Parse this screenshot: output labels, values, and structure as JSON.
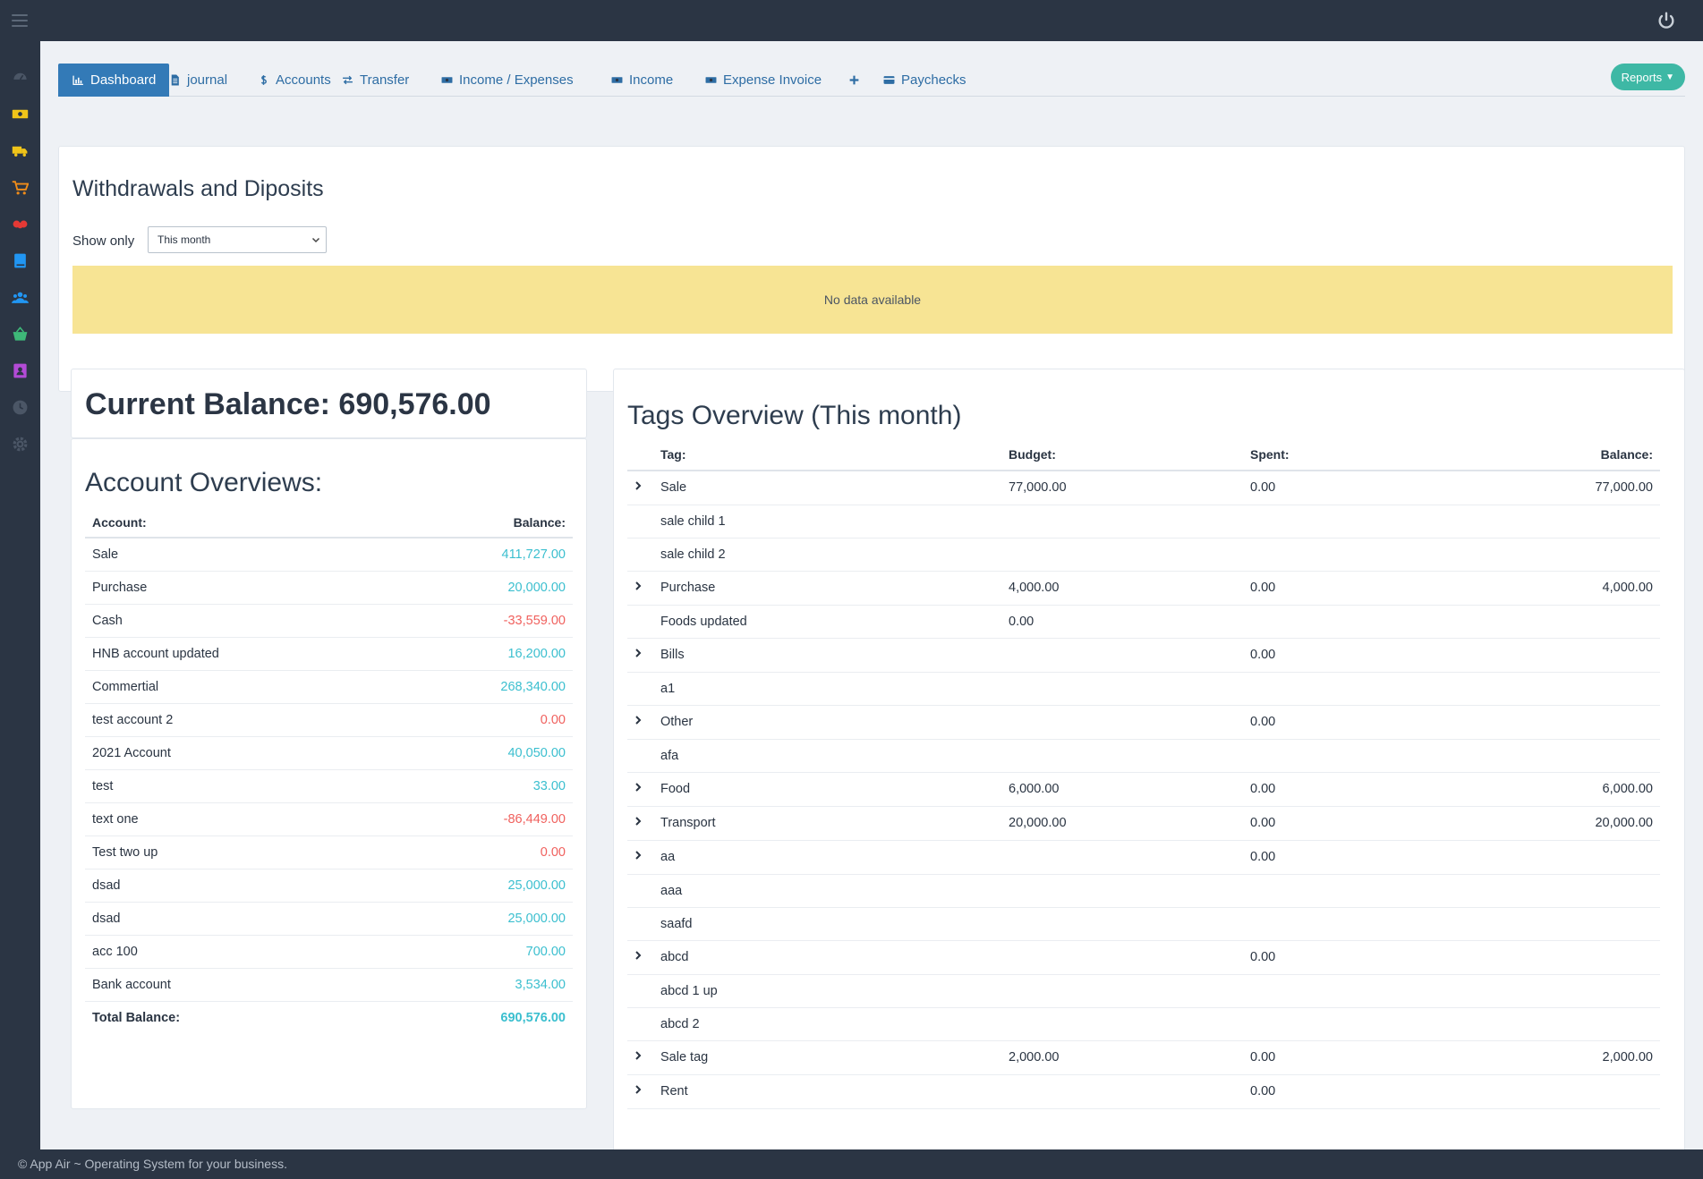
{
  "footer": {
    "text": "© App Air ~ Operating System for your business."
  },
  "sidebar": {
    "items": [
      {
        "name": "dashboard-icon",
        "color": "#4b5666"
      },
      {
        "name": "money-icon",
        "color": "#f0c419"
      },
      {
        "name": "truck-icon",
        "color": "#f0c419"
      },
      {
        "name": "cart-icon",
        "color": "#f08c19"
      },
      {
        "name": "handshake-icon",
        "color": "#e53935"
      },
      {
        "name": "book-icon",
        "color": "#2196f3"
      },
      {
        "name": "users-icon",
        "color": "#2196f3"
      },
      {
        "name": "basket-icon",
        "color": "#3eb878"
      },
      {
        "name": "contact-icon",
        "color": "#b34bd6"
      },
      {
        "name": "clock-icon",
        "color": "#4b5666"
      },
      {
        "name": "settings-icon",
        "color": "#4b5666"
      }
    ]
  },
  "tabs": [
    {
      "label": "Dashboard",
      "icon": "chart-icon",
      "active": true
    },
    {
      "label": "journal",
      "icon": "file-icon"
    },
    {
      "label": "Accounts",
      "icon": "dollar-icon"
    },
    {
      "label": "Transfer",
      "icon": "exchange-icon"
    },
    {
      "label": "Income / Expenses",
      "icon": "money-icon"
    },
    {
      "label": "Income",
      "icon": "money-icon"
    },
    {
      "label": "Expense Invoice",
      "icon": "money-icon"
    },
    {
      "label": "",
      "icon": "plus-icon"
    },
    {
      "label": "Paychecks",
      "icon": "card-icon"
    }
  ],
  "reports": {
    "label": "Reports"
  },
  "withdrawals": {
    "title": "Withdrawals and Diposits",
    "show_only_label": "Show only",
    "period_value": "This month",
    "empty_message": "No data available"
  },
  "balance": {
    "label": "Current Balance: 690,576.00"
  },
  "accounts": {
    "title": "Account Overviews:",
    "col_account": "Account:",
    "col_balance": "Balance:",
    "rows": [
      {
        "name": "Sale",
        "balance": "411,727.00",
        "negative": false
      },
      {
        "name": "Purchase",
        "balance": "20,000.00",
        "negative": false
      },
      {
        "name": "Cash",
        "balance": "-33,559.00",
        "negative": true
      },
      {
        "name": "HNB account updated",
        "balance": "16,200.00",
        "negative": false
      },
      {
        "name": "Commertial",
        "balance": "268,340.00",
        "negative": false
      },
      {
        "name": "test account 2",
        "balance": "0.00",
        "negative": true
      },
      {
        "name": "2021 Account",
        "balance": "40,050.00",
        "negative": false
      },
      {
        "name": "test",
        "balance": "33.00",
        "negative": false
      },
      {
        "name": "text one",
        "balance": "-86,449.00",
        "negative": true
      },
      {
        "name": "Test two up",
        "balance": "0.00",
        "negative": true
      },
      {
        "name": "dsad",
        "balance": "25,000.00",
        "negative": false
      },
      {
        "name": "dsad",
        "balance": "25,000.00",
        "negative": false
      },
      {
        "name": "acc 100",
        "balance": "700.00",
        "negative": false
      },
      {
        "name": "Bank account",
        "balance": "3,534.00",
        "negative": false
      }
    ],
    "total_label": "Total Balance:",
    "total_value": "690,576.00"
  },
  "tags": {
    "title": "Tags Overview (This month)",
    "col_tag": "Tag:",
    "col_budget": "Budget:",
    "col_spent": "Spent:",
    "col_balance": "Balance:",
    "rows": [
      {
        "parent": true,
        "tag": "Sale",
        "budget": "77,000.00",
        "spent": "0.00",
        "balance": "77,000.00"
      },
      {
        "parent": false,
        "tag": "sale child 1",
        "budget": "",
        "spent": "",
        "balance": ""
      },
      {
        "parent": false,
        "tag": "sale child 2",
        "budget": "",
        "spent": "",
        "balance": ""
      },
      {
        "parent": true,
        "tag": "Purchase",
        "budget": "4,000.00",
        "spent": "0.00",
        "balance": "4,000.00"
      },
      {
        "parent": false,
        "tag": "Foods updated",
        "budget": "0.00",
        "spent": "",
        "balance": ""
      },
      {
        "parent": true,
        "tag": "Bills",
        "budget": "",
        "spent": "0.00",
        "balance": ""
      },
      {
        "parent": false,
        "tag": "a1",
        "budget": "",
        "spent": "",
        "balance": ""
      },
      {
        "parent": true,
        "tag": "Other",
        "budget": "",
        "spent": "0.00",
        "balance": ""
      },
      {
        "parent": false,
        "tag": "afa",
        "budget": "",
        "spent": "",
        "balance": ""
      },
      {
        "parent": true,
        "tag": "Food",
        "budget": "6,000.00",
        "spent": "0.00",
        "balance": "6,000.00"
      },
      {
        "parent": true,
        "tag": "Transport",
        "budget": "20,000.00",
        "spent": "0.00",
        "balance": "20,000.00"
      },
      {
        "parent": true,
        "tag": "aa",
        "budget": "",
        "spent": "0.00",
        "balance": ""
      },
      {
        "parent": false,
        "tag": "aaa",
        "budget": "",
        "spent": "",
        "balance": ""
      },
      {
        "parent": false,
        "tag": "saafd",
        "budget": "",
        "spent": "",
        "balance": ""
      },
      {
        "parent": true,
        "tag": "abcd",
        "budget": "",
        "spent": "0.00",
        "balance": ""
      },
      {
        "parent": false,
        "tag": "abcd 1 up",
        "budget": "",
        "spent": "",
        "balance": ""
      },
      {
        "parent": false,
        "tag": "abcd 2",
        "budget": "",
        "spent": "",
        "balance": ""
      },
      {
        "parent": true,
        "tag": "Sale tag",
        "budget": "2,000.00",
        "spent": "0.00",
        "balance": "2,000.00"
      },
      {
        "parent": true,
        "tag": "Rent",
        "budget": "",
        "spent": "0.00",
        "balance": ""
      }
    ]
  }
}
